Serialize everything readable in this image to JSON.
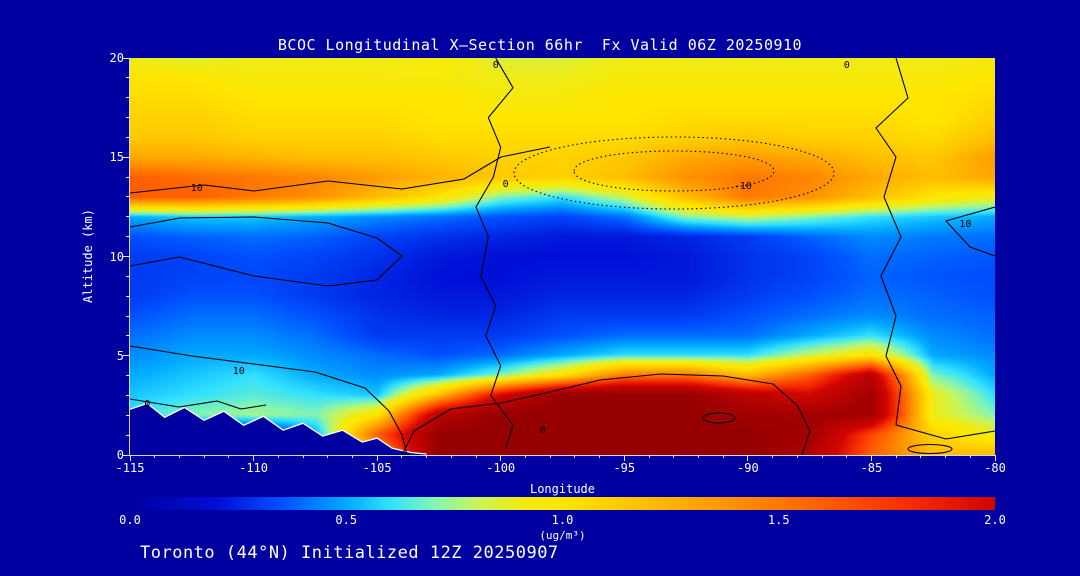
{
  "title": "BCOC Longitudinal X—Section 66hr  Fx Valid 06Z 20250910",
  "caption": "Toronto (44°N) Initialized 12Z 20250907",
  "axes": {
    "x": {
      "label": "Longitude",
      "ticks": [
        -115,
        -110,
        -105,
        -100,
        -95,
        -90,
        -85,
        -80
      ],
      "range": [
        -115,
        -80
      ]
    },
    "y": {
      "label": "Altitude (km)",
      "ticks": [
        0,
        5,
        10,
        15,
        20
      ],
      "range": [
        0,
        20
      ]
    }
  },
  "colorbar": {
    "ticks": [
      "0.0",
      "0.5",
      "1.0",
      "1.5",
      "2.0"
    ],
    "min": 0.0,
    "max": 2.0,
    "unit": "(ug/m³)"
  },
  "contour_labels": [
    {
      "text": "10",
      "lon": -112.3,
      "alt": 13.4
    },
    {
      "text": "0",
      "lon": -99.8,
      "alt": 13.6
    },
    {
      "text": "-10",
      "lon": -90.2,
      "alt": 13.5
    },
    {
      "text": "10",
      "lon": -81.2,
      "alt": 11.6
    },
    {
      "text": "0",
      "lon": -86.0,
      "alt": 19.6
    },
    {
      "text": "0",
      "lon": -100.2,
      "alt": 19.6
    },
    {
      "text": "10",
      "lon": -110.6,
      "alt": 4.2
    },
    {
      "text": "0",
      "lon": -114.3,
      "alt": 2.5
    },
    {
      "text": "0",
      "lon": -98.3,
      "alt": 1.2
    }
  ],
  "chart_data": {
    "type": "heatmap",
    "title": "BCOC Longitudinal X—Section 66hr  Fx Valid 06Z 20250910",
    "xlabel": "Longitude",
    "ylabel": "Altitude (km)",
    "units": "ug/m3",
    "lon_range": [
      -115,
      -80
    ],
    "alt_range": [
      0,
      20
    ],
    "x_longitudes": [
      -115,
      -112.5,
      -110,
      -107.5,
      -105,
      -102.5,
      -100,
      -97.5,
      -95,
      -92.5,
      -90,
      -87.5,
      -85,
      -82.5,
      -80
    ],
    "y_altitudes_km": [
      0,
      1,
      2,
      3,
      4,
      5,
      6,
      7,
      8,
      9,
      10,
      11,
      12,
      13,
      14,
      15,
      16,
      17,
      18,
      19,
      20
    ],
    "values_ug_m3": [
      [
        0.05,
        0.05,
        0.05,
        0.4,
        1.3,
        2.5,
        2.5,
        2.5,
        2.5,
        2.5,
        2.5,
        2.3,
        1.6,
        1.2,
        1.2
      ],
      [
        0.05,
        0.05,
        0.1,
        0.5,
        1.6,
        2.5,
        2.5,
        2.5,
        2.5,
        2.5,
        2.5,
        2.4,
        1.7,
        1.1,
        0.9
      ],
      [
        0.6,
        0.7,
        0.75,
        0.7,
        1.0,
        2.2,
        2.5,
        2.5,
        2.5,
        2.5,
        2.4,
        2.4,
        2.4,
        0.9,
        0.7
      ],
      [
        0.55,
        0.6,
        0.65,
        0.6,
        0.55,
        1.2,
        2.0,
        2.5,
        2.5,
        2.5,
        2.2,
        2.0,
        2.4,
        0.9,
        0.6
      ],
      [
        0.5,
        0.55,
        0.6,
        0.5,
        0.45,
        0.5,
        0.7,
        1.0,
        1.5,
        1.5,
        1.2,
        1.6,
        2.2,
        0.7,
        0.5
      ],
      [
        0.45,
        0.5,
        0.5,
        0.45,
        0.4,
        0.35,
        0.4,
        0.5,
        0.6,
        0.6,
        0.6,
        0.8,
        1.0,
        0.5,
        0.45
      ],
      [
        0.4,
        0.45,
        0.45,
        0.4,
        0.3,
        0.3,
        0.3,
        0.35,
        0.4,
        0.4,
        0.4,
        0.5,
        0.6,
        0.45,
        0.4
      ],
      [
        0.35,
        0.4,
        0.4,
        0.35,
        0.28,
        0.25,
        0.25,
        0.3,
        0.3,
        0.3,
        0.35,
        0.4,
        0.45,
        0.4,
        0.38
      ],
      [
        0.3,
        0.35,
        0.35,
        0.3,
        0.25,
        0.22,
        0.22,
        0.25,
        0.25,
        0.25,
        0.3,
        0.35,
        0.4,
        0.38,
        0.35
      ],
      [
        0.3,
        0.32,
        0.33,
        0.3,
        0.25,
        0.2,
        0.2,
        0.22,
        0.22,
        0.22,
        0.28,
        0.32,
        0.38,
        0.36,
        0.34
      ],
      [
        0.3,
        0.32,
        0.35,
        0.32,
        0.28,
        0.22,
        0.2,
        0.2,
        0.2,
        0.22,
        0.28,
        0.32,
        0.4,
        0.38,
        0.36
      ],
      [
        0.35,
        0.38,
        0.4,
        0.38,
        0.32,
        0.28,
        0.25,
        0.22,
        0.22,
        0.25,
        0.3,
        0.38,
        0.45,
        0.42,
        0.4
      ],
      [
        0.5,
        0.55,
        0.55,
        0.5,
        0.45,
        0.4,
        0.35,
        0.32,
        0.4,
        0.7,
        0.8,
        0.7,
        0.6,
        0.55,
        0.5
      ],
      [
        1.6,
        1.6,
        1.5,
        1.4,
        1.2,
        1.0,
        0.7,
        0.6,
        0.8,
        1.2,
        1.5,
        1.4,
        1.2,
        1.0,
        0.9
      ],
      [
        1.6,
        1.55,
        1.5,
        1.45,
        1.35,
        1.25,
        1.15,
        1.1,
        1.2,
        1.4,
        1.5,
        1.45,
        1.3,
        1.2,
        1.3
      ],
      [
        1.3,
        1.3,
        1.25,
        1.2,
        1.2,
        1.15,
        1.1,
        1.1,
        1.15,
        1.3,
        1.35,
        1.3,
        1.2,
        1.15,
        1.35
      ],
      [
        1.15,
        1.15,
        1.1,
        1.1,
        1.1,
        1.05,
        1.05,
        1.05,
        1.05,
        1.1,
        1.15,
        1.1,
        1.1,
        1.05,
        1.2
      ],
      [
        1.1,
        1.1,
        1.05,
        1.05,
        1.05,
        1.0,
        1.0,
        1.0,
        1.0,
        1.05,
        1.05,
        1.05,
        1.05,
        1.0,
        1.1
      ],
      [
        1.05,
        1.05,
        1.0,
        1.0,
        1.0,
        1.0,
        0.95,
        0.95,
        1.0,
        1.0,
        1.0,
        1.0,
        1.0,
        1.0,
        1.05
      ],
      [
        1.0,
        1.0,
        0.95,
        0.95,
        0.95,
        0.95,
        0.9,
        0.9,
        0.95,
        0.95,
        0.95,
        0.95,
        0.95,
        0.95,
        1.0
      ],
      [
        0.9,
        0.85,
        0.9,
        0.9,
        0.9,
        0.95,
        0.85,
        0.85,
        0.9,
        0.9,
        0.9,
        0.9,
        0.9,
        0.9,
        0.95
      ]
    ],
    "colormap_stops": [
      [
        0.0,
        "#0000a0"
      ],
      [
        0.2,
        "#000fd7"
      ],
      [
        0.35,
        "#0050ff"
      ],
      [
        0.5,
        "#00aaff"
      ],
      [
        0.6,
        "#32e1ff"
      ],
      [
        0.7,
        "#82f5b4"
      ],
      [
        0.8,
        "#c8f55a"
      ],
      [
        0.9,
        "#f0eb14"
      ],
      [
        1.0,
        "#ffe600"
      ],
      [
        1.2,
        "#ffbe00"
      ],
      [
        1.4,
        "#ff9100"
      ],
      [
        1.6,
        "#ff5f00"
      ],
      [
        1.8,
        "#f82d00"
      ],
      [
        2.0,
        "#d20500"
      ],
      [
        2.5,
        "#960000"
      ],
      [
        3.0,
        "#820000"
      ]
    ],
    "terrain_line": [
      [
        -115,
        2.3
      ],
      [
        -114.3,
        2.6
      ],
      [
        -113.6,
        1.9
      ],
      [
        -112.8,
        2.4
      ],
      [
        -112,
        1.75
      ],
      [
        -111.2,
        2.2
      ],
      [
        -110.4,
        1.5
      ],
      [
        -109.6,
        1.95
      ],
      [
        -108.8,
        1.25
      ],
      [
        -108,
        1.6
      ],
      [
        -107.2,
        0.95
      ],
      [
        -106.4,
        1.25
      ],
      [
        -105.6,
        0.65
      ],
      [
        -105,
        0.85
      ],
      [
        -104.4,
        0.35
      ],
      [
        -103.6,
        0.12
      ],
      [
        -103,
        0.05
      ]
    ],
    "background_color": "#0000a0",
    "text_color": "#ffffff",
    "contour_line_color": "#000000",
    "legend_position": "bottom",
    "grid": false
  }
}
